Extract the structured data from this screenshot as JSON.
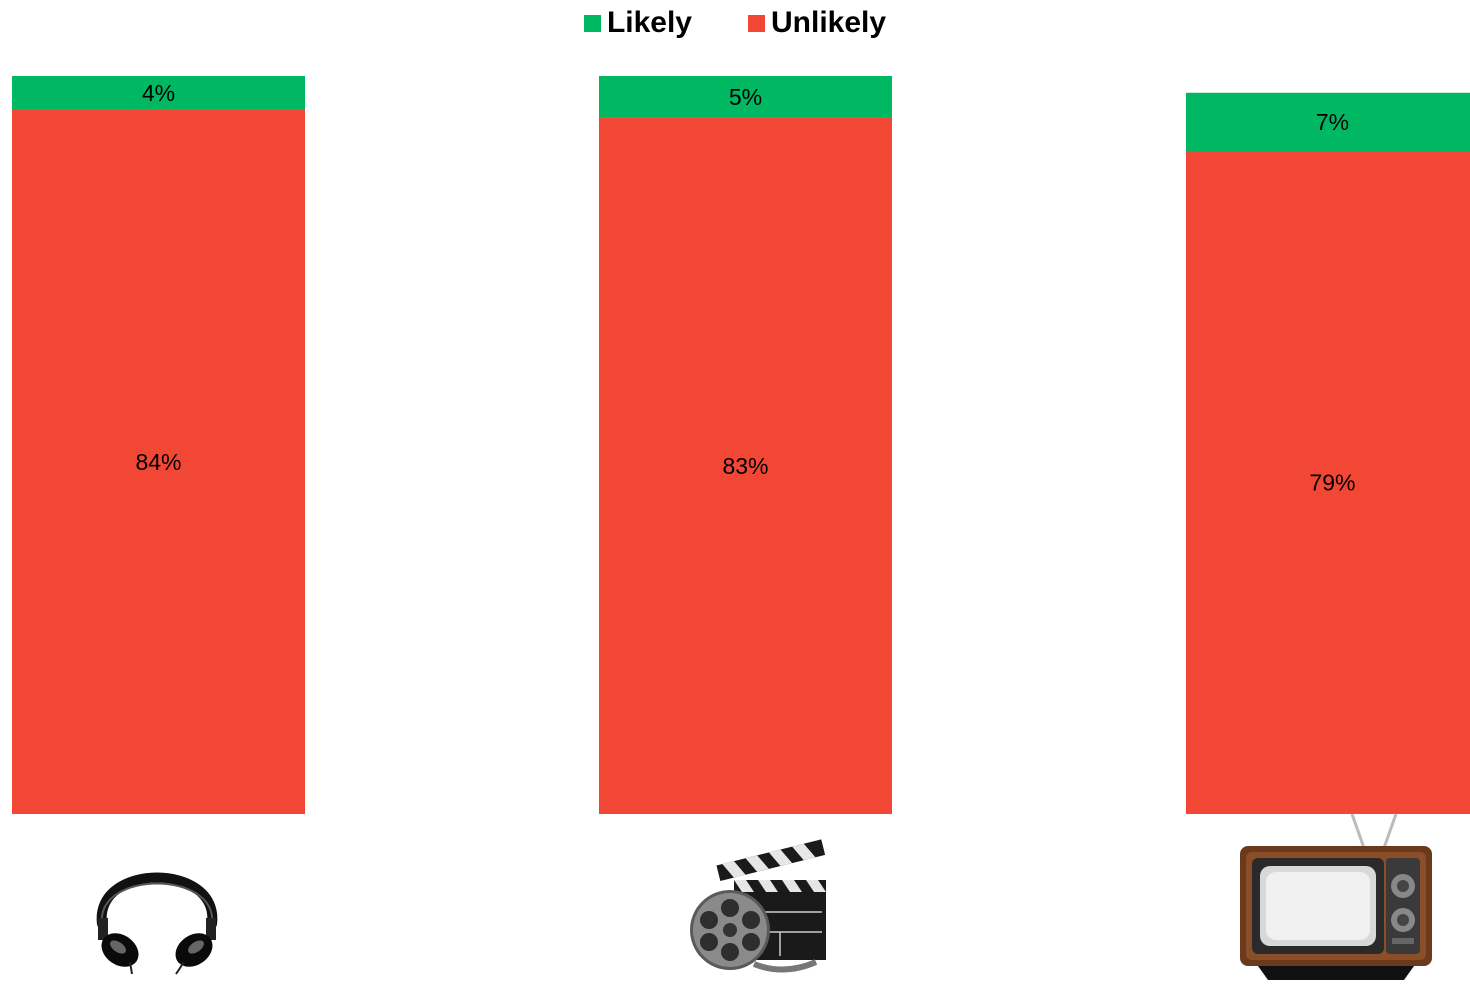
{
  "colors": {
    "likely": "#00B862",
    "unlikely": "#F24734"
  },
  "legend": {
    "placement": "top-center"
  },
  "chart_data": {
    "type": "bar",
    "stacked": true,
    "categories": [
      "",
      "",
      ""
    ],
    "category_icons": [
      "headphones-icon",
      "film-reel-clapperboard-icon",
      "retro-television-icon"
    ],
    "series": [
      {
        "name": "Unlikely",
        "values": [
          84,
          83,
          79
        ],
        "labels": [
          "84%",
          "83%",
          "79%"
        ],
        "color": "#F24734"
      },
      {
        "name": "Likely",
        "values": [
          4,
          5,
          7
        ],
        "labels": [
          "4%",
          "5%",
          "7%"
        ],
        "color": "#00B862"
      }
    ],
    "ylim": [
      0,
      88
    ],
    "grid": false,
    "title": "",
    "xlabel": "",
    "ylabel": ""
  }
}
